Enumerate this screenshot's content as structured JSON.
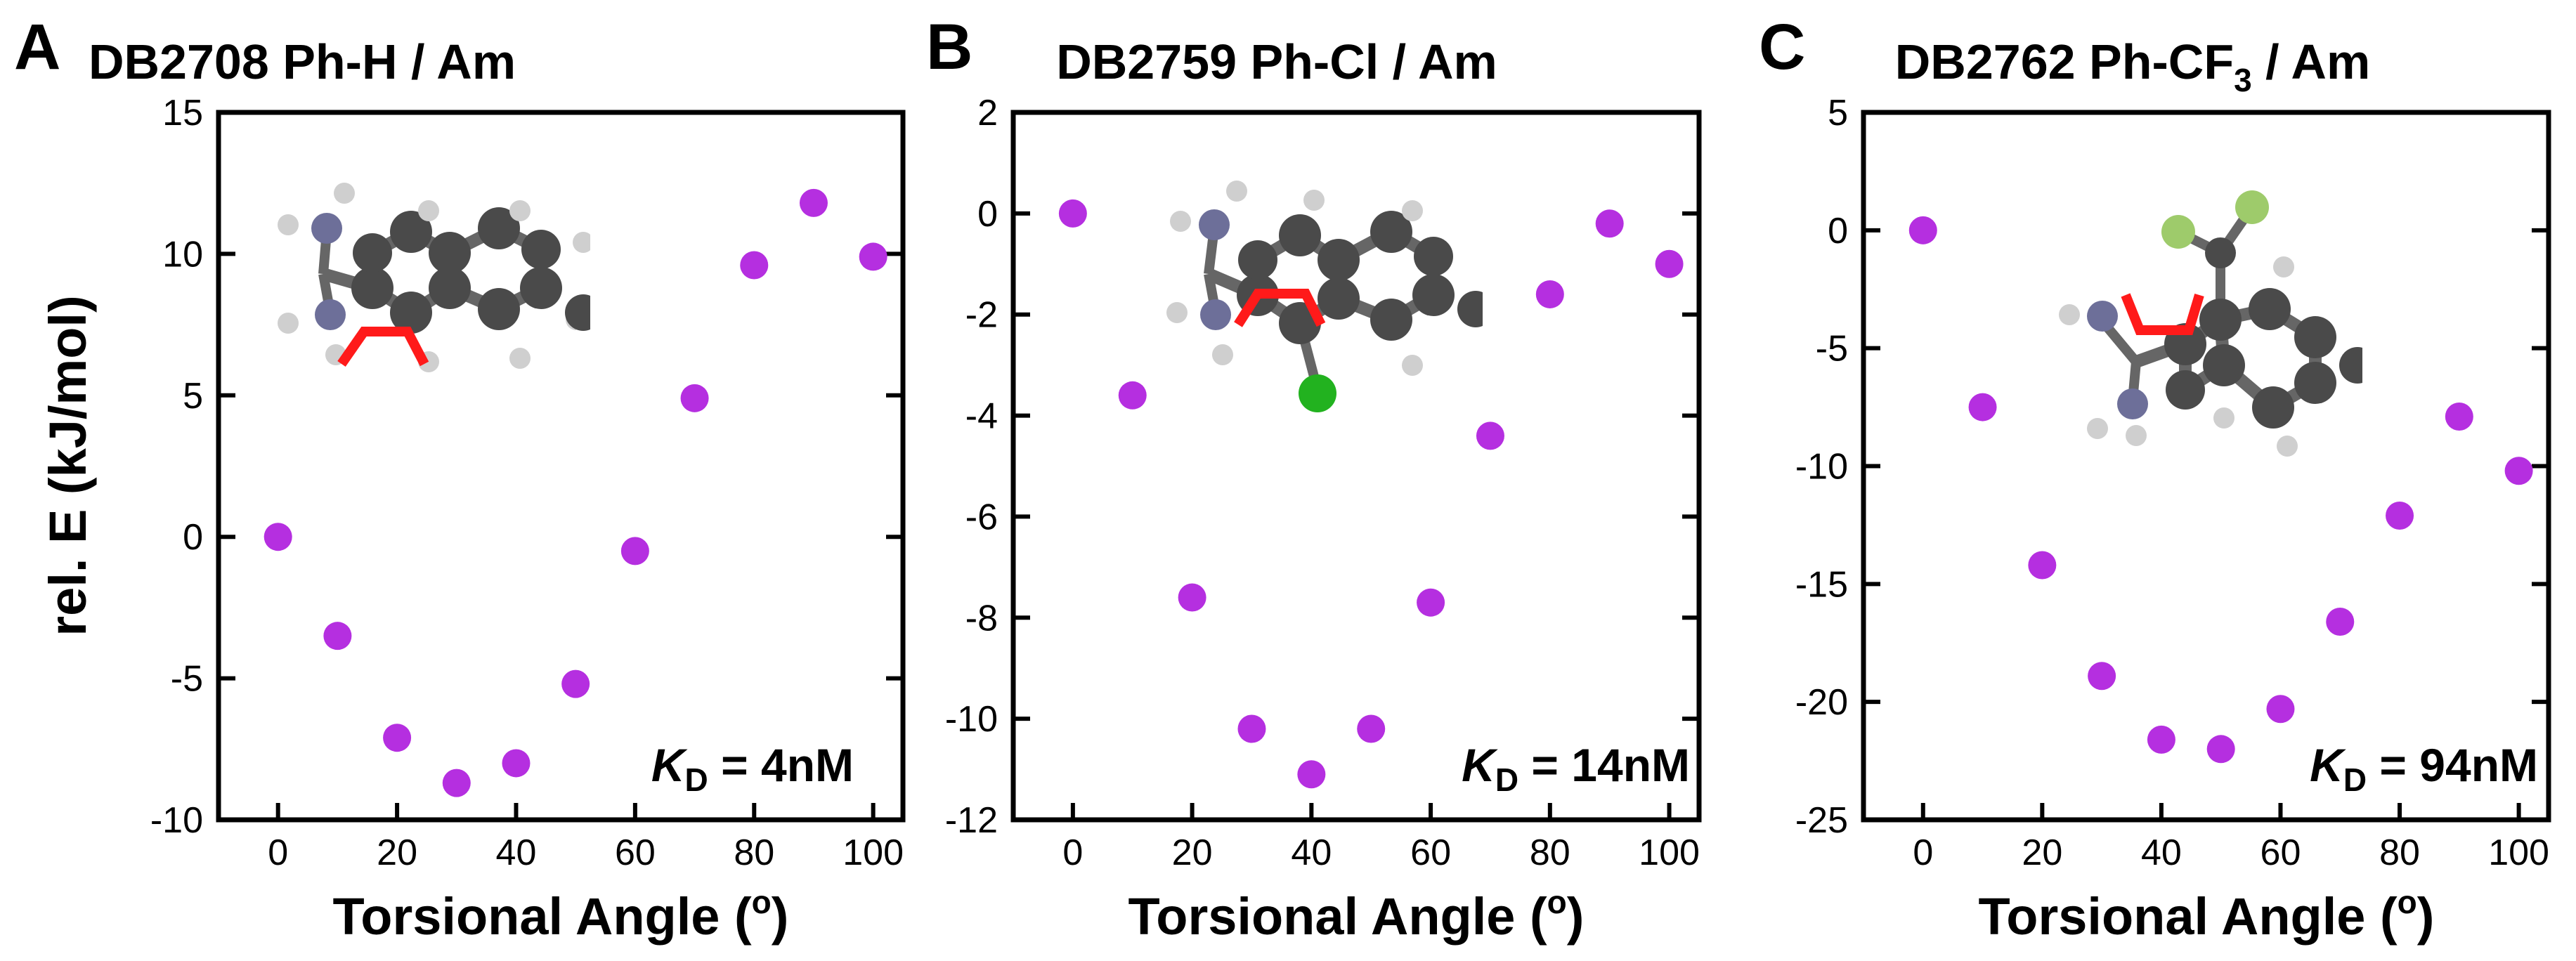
{
  "colors": {
    "marker": "#B52FE0",
    "axis": "#000000",
    "carbon": "#4a4a4a",
    "nitrogen": "#6d6f99",
    "hydrogen": "#cfcfcf",
    "chlorine": "#22b21f",
    "fluorine": "#9ecb6b",
    "bond_highlight": "#ff1a1a"
  },
  "shared": {
    "ylabel": "rel. E (kJ/mol)",
    "xlabel_main": "Torsional Angle (",
    "xlabel_sup": "o",
    "xlabel_close": ")"
  },
  "chart_data": [
    {
      "type": "scatter",
      "panel": "A",
      "title_main": "DB2708 Ph-H / Am",
      "title_sub": "",
      "title_tail": "",
      "x": [
        0,
        10,
        20,
        30,
        40,
        50,
        60,
        70,
        80,
        90,
        100
      ],
      "y": [
        0,
        -3.5,
        -7.1,
        -8.7,
        -8.0,
        -5.2,
        -0.5,
        4.9,
        9.6,
        11.8,
        9.9
      ],
      "xlim": [
        -10,
        105
      ],
      "ylim": [
        -10,
        15
      ],
      "xticks": [
        0,
        20,
        40,
        60,
        80,
        100
      ],
      "yticks": [
        -10,
        -5,
        0,
        5,
        10,
        15
      ],
      "kd_symbol": "K",
      "kd_sub": "D",
      "kd_value": " = 4nM",
      "molecule": "Ph-H",
      "icons": [
        "molecule-structure-icon"
      ]
    },
    {
      "type": "scatter",
      "panel": "B",
      "title_main": "DB2759 Ph-Cl / Am",
      "title_sub": "",
      "title_tail": "",
      "x": [
        0,
        10,
        20,
        30,
        40,
        50,
        60,
        70,
        80,
        90,
        100
      ],
      "y": [
        0,
        -3.6,
        -7.6,
        -10.2,
        -11.1,
        -10.2,
        -7.7,
        -4.4,
        -1.6,
        -0.2,
        -1.0
      ],
      "xlim": [
        -10,
        105
      ],
      "ylim": [
        -12,
        2
      ],
      "xticks": [
        0,
        20,
        40,
        60,
        80,
        100
      ],
      "yticks": [
        -12,
        -10,
        -8,
        -6,
        -4,
        -2,
        0,
        2
      ],
      "kd_symbol": "K",
      "kd_sub": "D",
      "kd_value": " = 14nM",
      "molecule": "Ph-Cl",
      "icons": [
        "molecule-structure-icon"
      ]
    },
    {
      "type": "scatter",
      "panel": "C",
      "title_main": "DB2762 Ph-CF",
      "title_sub": "3",
      "title_tail": " / Am",
      "x": [
        0,
        10,
        20,
        30,
        40,
        50,
        60,
        70,
        80,
        90,
        100
      ],
      "y": [
        0,
        -7.5,
        -14.2,
        -18.9,
        -21.6,
        -22.0,
        -20.3,
        -16.6,
        -12.1,
        -7.9,
        -10.2
      ],
      "xlim": [
        -10,
        105
      ],
      "ylim": [
        -25,
        5
      ],
      "xticks": [
        0,
        20,
        40,
        60,
        80,
        100
      ],
      "yticks": [
        -25,
        -20,
        -15,
        -10,
        -5,
        0,
        5
      ],
      "kd_symbol": "K",
      "kd_sub": "D",
      "kd_value": " = 94nM",
      "molecule": "Ph-CF3",
      "icons": [
        "molecule-structure-icon"
      ]
    }
  ]
}
